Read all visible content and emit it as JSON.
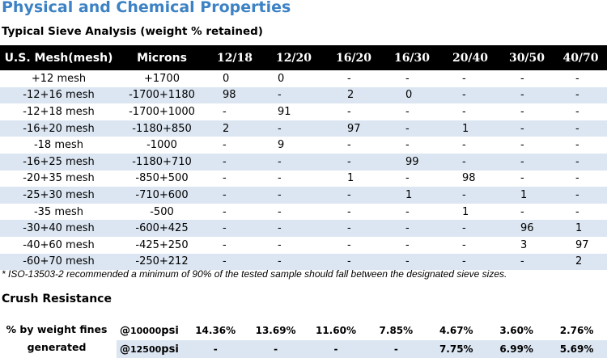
{
  "title": "Physical and Chemical Properties",
  "sieve": {
    "subtitle": "Typical Sieve Analysis (weight % retained)",
    "headers": [
      "U.S. Mesh(mesh)",
      "Microns",
      "12/18",
      "12/20",
      "16/20",
      "16/30",
      "20/40",
      "30/50",
      "40/70"
    ],
    "rows": [
      {
        "mesh": "+12 mesh",
        "microns": "+1700",
        "v": [
          "0",
          "0",
          "-",
          "-",
          "-",
          "-",
          "-"
        ]
      },
      {
        "mesh": "-12+16 mesh",
        "microns": "-1700+1180",
        "v": [
          "98",
          "-",
          "2",
          "0",
          "-",
          "-",
          "-"
        ]
      },
      {
        "mesh": "-12+18 mesh",
        "microns": "-1700+1000",
        "v": [
          "-",
          "91",
          "-",
          "-",
          "-",
          "-",
          "-"
        ]
      },
      {
        "mesh": "-16+20 mesh",
        "microns": "-1180+850",
        "v": [
          "2",
          "-",
          "97",
          "-",
          "1",
          "-",
          "-"
        ]
      },
      {
        "mesh": "-18 mesh",
        "microns": "-1000",
        "v": [
          "-",
          "9",
          "-",
          "-",
          "-",
          "-",
          "-"
        ]
      },
      {
        "mesh": "-16+25 mesh",
        "microns": "-1180+710",
        "v": [
          "-",
          "-",
          "-",
          "99",
          "-",
          "-",
          "-"
        ]
      },
      {
        "mesh": "-20+35 mesh",
        "microns": "-850+500",
        "v": [
          "-",
          "-",
          "1",
          "-",
          "98",
          "-",
          "-"
        ]
      },
      {
        "mesh": "-25+30 mesh",
        "microns": "-710+600",
        "v": [
          "-",
          "-",
          "-",
          "1",
          "-",
          "1",
          "-"
        ]
      },
      {
        "mesh": "-35 mesh",
        "microns": "-500",
        "v": [
          "-",
          "-",
          "-",
          "-",
          "1",
          "-",
          "-"
        ]
      },
      {
        "mesh": "-30+40 mesh",
        "microns": "-600+425",
        "v": [
          "-",
          "-",
          "-",
          "-",
          "-",
          "96",
          "1"
        ]
      },
      {
        "mesh": "-40+60 mesh",
        "microns": "-425+250",
        "v": [
          "-",
          "-",
          "-",
          "-",
          "-",
          "3",
          "97"
        ]
      },
      {
        "mesh": "-60+70 mesh",
        "microns": "-250+212",
        "v": [
          "-",
          "-",
          "-",
          "-",
          "-",
          "-",
          "2"
        ]
      }
    ],
    "note": "* ISO-13503-2 recommended a minimum of 90% of the tested sample should fall between the designated sieve sizes."
  },
  "crush": {
    "title": "Crush Resistance",
    "label_line1": "% by weight fines",
    "label_line2": "generated",
    "rows": [
      {
        "at": "@",
        "value": "10000",
        "unit": "psi",
        "v": [
          "14.36%",
          "13.69%",
          "11.60%",
          "7.85%",
          "4.67%",
          "3.60%",
          "2.76%"
        ]
      },
      {
        "at": "@",
        "value": "12500",
        "unit": "psi",
        "v": [
          "-",
          "-",
          "-",
          "-",
          "7.75%",
          "6.99%",
          "5.69%"
        ]
      }
    ]
  },
  "colors": {
    "title_blue": "#3c82c4",
    "header_bg": "#000000",
    "alt_row_bg": "#dce6f2"
  }
}
